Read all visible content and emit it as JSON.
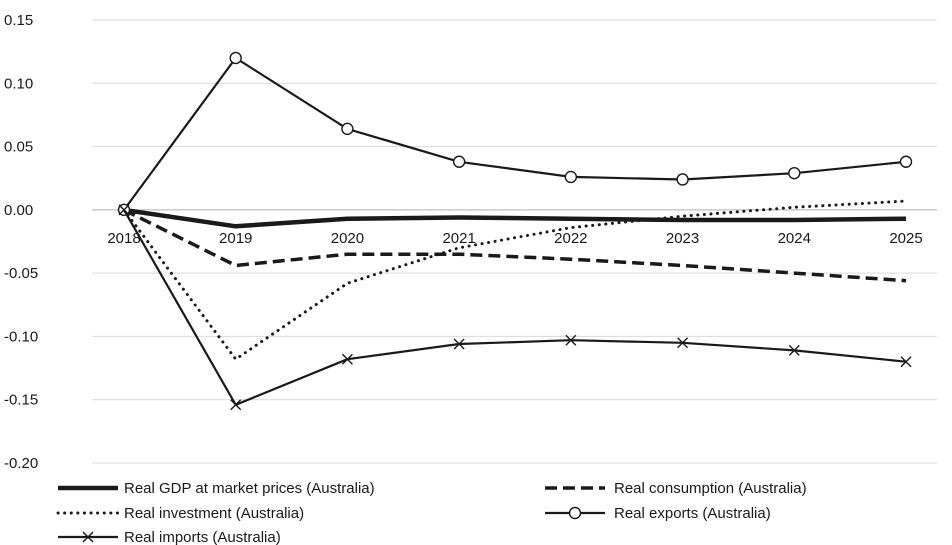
{
  "chart_data": {
    "type": "line",
    "title": "",
    "xlabel": "",
    "ylabel": "",
    "x": [
      "2018",
      "2019",
      "2020",
      "2021",
      "2022",
      "2023",
      "2024",
      "2025"
    ],
    "ylim": [
      -0.2,
      0.15
    ],
    "yticks": [
      "0.15",
      "0.10",
      "0.05",
      "0.00",
      "-0.05",
      "-0.10",
      "-0.15",
      "-0.20"
    ],
    "ytick_values": [
      0.15,
      0.1,
      0.05,
      0.0,
      -0.05,
      -0.1,
      -0.15,
      -0.2
    ],
    "grid": "horizontal",
    "legend_position": "bottom",
    "series": [
      {
        "name": "Real GDP at market prices (Australia)",
        "style": "thick-solid",
        "values": [
          0.0,
          -0.013,
          -0.007,
          -0.006,
          -0.007,
          -0.008,
          -0.008,
          -0.007
        ]
      },
      {
        "name": "Real consumption (Australia)",
        "style": "dashed",
        "values": [
          0.0,
          -0.044,
          -0.035,
          -0.035,
          -0.039,
          -0.044,
          -0.05,
          -0.056
        ]
      },
      {
        "name": "Real investment (Australia)",
        "style": "dotted",
        "values": [
          0.0,
          -0.118,
          -0.058,
          -0.03,
          -0.014,
          -0.005,
          0.002,
          0.007
        ]
      },
      {
        "name": "Real exports (Australia)",
        "style": "solid-circle",
        "values": [
          0.0,
          0.12,
          0.064,
          0.038,
          0.026,
          0.024,
          0.029,
          0.038
        ]
      },
      {
        "name": "Real imports (Australia)",
        "style": "solid-cross",
        "values": [
          0.0,
          -0.154,
          -0.118,
          -0.106,
          -0.103,
          -0.105,
          -0.111,
          -0.12
        ]
      }
    ]
  }
}
